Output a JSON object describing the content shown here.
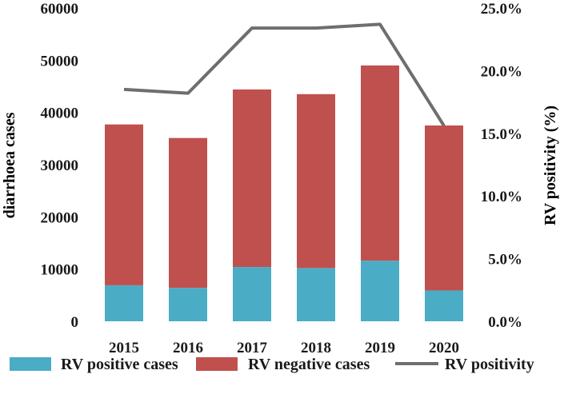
{
  "chart_data": {
    "type": "bar+line",
    "categories": [
      "2015",
      "2016",
      "2017",
      "2018",
      "2019",
      "2020"
    ],
    "series": [
      {
        "name": "RV positive cases",
        "kind": "bar",
        "stack": "cases",
        "axis": "left",
        "values": [
          6900,
          6400,
          10400,
          10200,
          11600,
          5900
        ]
      },
      {
        "name": "RV negative cases",
        "kind": "bar",
        "stack": "cases",
        "axis": "left",
        "values": [
          30800,
          28700,
          34000,
          33300,
          37400,
          31600
        ]
      },
      {
        "name": "RV positivity",
        "kind": "line",
        "axis": "right",
        "values": [
          18.5,
          18.2,
          23.4,
          23.4,
          23.7,
          15.6
        ]
      }
    ],
    "ylabel": "diarrhoea cases",
    "y2label": "RV positivity (%)",
    "ylim": [
      0,
      60000
    ],
    "y2lim": [
      0,
      25
    ],
    "yticks": [
      "0",
      "10000",
      "20000",
      "30000",
      "40000",
      "50000",
      "60000"
    ],
    "y2ticks": [
      "0.0%",
      "5.0%",
      "10.0%",
      "15.0%",
      "20.0%",
      "25.0%"
    ],
    "legend": [
      "RV positive cases",
      "RV negative cases",
      "RV positivity"
    ],
    "legend_position": "bottom",
    "grid": false
  },
  "colors": {
    "positive": "#4bacc6",
    "negative": "#c0504d",
    "line": "#6e6e6e"
  }
}
